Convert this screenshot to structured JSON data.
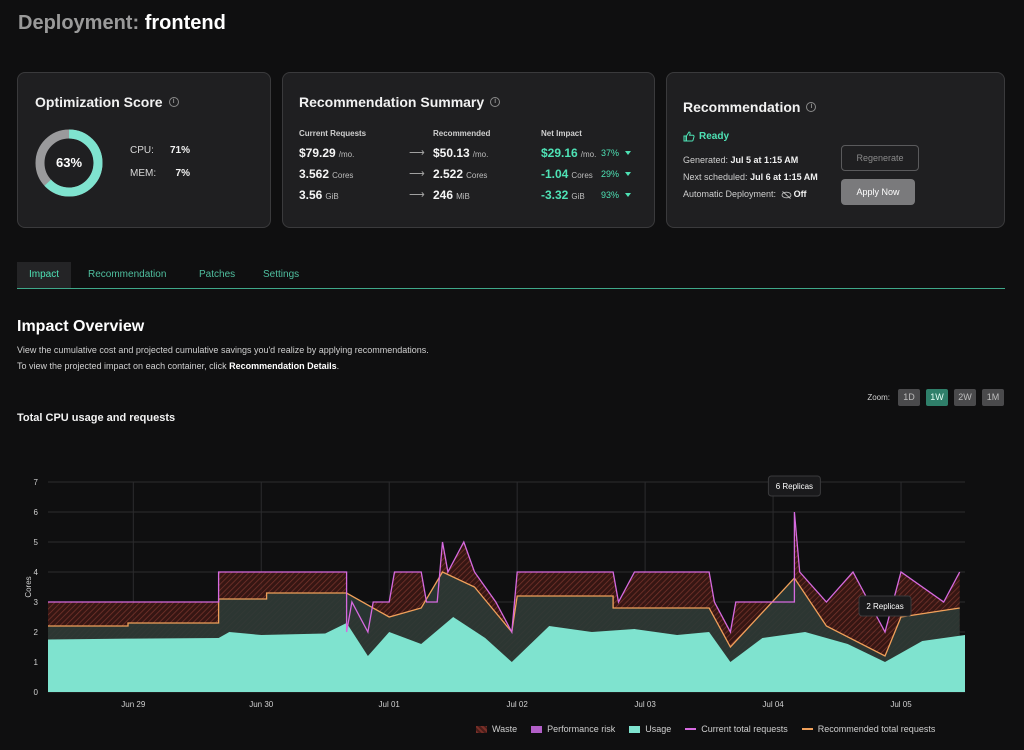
{
  "page": {
    "title_prefix": "Deployment:",
    "title_name": "frontend"
  },
  "score_card": {
    "title": "Optimization Score",
    "score_label": "63%",
    "score_value": 63,
    "rows": [
      {
        "label": "CPU:",
        "value": "71%"
      },
      {
        "label": "MEM:",
        "value": "7%"
      }
    ]
  },
  "summary_card": {
    "title": "Recommendation Summary",
    "headers": {
      "current": "Current Requests",
      "recommended": "Recommended",
      "impact": "Net Impact"
    },
    "rows": [
      {
        "cur": "$79.29",
        "cur_unit": "/mo.",
        "rec": "$50.13",
        "rec_unit": "/mo.",
        "net": "$29.16",
        "net_unit": "/mo.",
        "pct": "37%"
      },
      {
        "cur": "3.562",
        "cur_unit": "Cores",
        "rec": "2.522",
        "rec_unit": "Cores",
        "net": "-1.04",
        "net_unit": "Cores",
        "pct": "29%"
      },
      {
        "cur": "3.56",
        "cur_unit": "GiB",
        "rec": "246",
        "rec_unit": "MiB",
        "net": "-3.32",
        "net_unit": "GiB",
        "pct": "93%"
      }
    ]
  },
  "rec_card": {
    "title": "Recommendation",
    "status": "Ready",
    "generated_label": "Generated:",
    "generated_value": "Jul 5 at 1:15 AM",
    "next_label": "Next scheduled:",
    "next_value": "Jul 6 at 1:15 AM",
    "auto_label": "Automatic Deployment:",
    "auto_value": "Off",
    "regenerate_label": "Regenerate",
    "apply_label": "Apply Now"
  },
  "tabs": [
    {
      "label": "Impact",
      "active": true
    },
    {
      "label": "Recommendation",
      "active": false
    },
    {
      "label": "Patches",
      "active": false
    },
    {
      "label": "Settings",
      "active": false
    }
  ],
  "overview": {
    "title": "Impact Overview",
    "desc_line1": "View the cumulative cost and projected cumulative savings you'd realize by applying recommendations.",
    "desc_line2_prefix": "To view the projected impact on each container, click ",
    "desc_line2_bold": "Recommendation Details",
    "desc_line2_suffix": "."
  },
  "zoom": {
    "label": "Zoom:",
    "options": [
      "1D",
      "1W",
      "2W",
      "1M"
    ],
    "selected": "1W"
  },
  "colors": {
    "accent": "#4ee2b5",
    "usage": "#7fe3cf",
    "current_requests": "#d66ae0",
    "recommended_requests": "#f0a05a",
    "waste": "#7a2f28",
    "risk": "#b25fc8"
  },
  "chart_data": {
    "type": "area",
    "title": "Total CPU usage and requests",
    "ylabel": "Cores",
    "ylim": [
      0,
      7
    ],
    "yticks": [
      0,
      1,
      2,
      3,
      4,
      5,
      6,
      7
    ],
    "xlim": [
      "Jun 28 08:00",
      "Jul 05 12:00"
    ],
    "xticks": [
      "Jun 29",
      "Jun 30",
      "Jul 01",
      "Jul 02",
      "Jul 03",
      "Jul 04",
      "Jul 05"
    ],
    "grid": true,
    "legend_position": "bottom-right",
    "legend": [
      "Waste",
      "Performance risk",
      "Usage",
      "Current total requests",
      "Recommended total requests"
    ],
    "annotations": [
      {
        "text": "6 Replicas",
        "x": "Jul 04 04:00",
        "y": 6
      },
      {
        "text": "2 Replicas",
        "x": "Jul 04 21:00",
        "y": 2
      }
    ],
    "series": [
      {
        "name": "Current total requests",
        "points": [
          [
            "Jun 28 08:00",
            3.0
          ],
          [
            "Jun 29 16:00",
            3.0
          ],
          [
            "Jun 29 16:00",
            4.0
          ],
          [
            "Jun 30 16:00",
            4.0
          ],
          [
            "Jun 30 16:00",
            2.0
          ],
          [
            "Jun 30 17:00",
            3.0
          ],
          [
            "Jun 30 20:00",
            2.0
          ],
          [
            "Jun 30 21:00",
            3.0
          ],
          [
            "Jul 01 00:00",
            3.0
          ],
          [
            "Jul 01 01:00",
            4.0
          ],
          [
            "Jul 01 06:00",
            4.0
          ],
          [
            "Jul 01 07:00",
            3.0
          ],
          [
            "Jul 01 09:00",
            3.0
          ],
          [
            "Jul 01 10:00",
            5.0
          ],
          [
            "Jul 01 11:00",
            4.0
          ],
          [
            "Jul 01 14:00",
            5.0
          ],
          [
            "Jul 01 16:00",
            4.0
          ],
          [
            "Jul 01 20:00",
            3.0
          ],
          [
            "Jul 01 23:00",
            2.0
          ],
          [
            "Jul 02 00:00",
            4.0
          ],
          [
            "Jul 02 18:00",
            4.0
          ],
          [
            "Jul 02 19:00",
            3.0
          ],
          [
            "Jul 02 22:00",
            4.0
          ],
          [
            "Jul 03 12:00",
            4.0
          ],
          [
            "Jul 03 13:00",
            3.0
          ],
          [
            "Jul 03 16:00",
            2.0
          ],
          [
            "Jul 03 17:00",
            3.0
          ],
          [
            "Jul 04 04:00",
            3.0
          ],
          [
            "Jul 04 04:00",
            6.0
          ],
          [
            "Jul 04 05:00",
            4.0
          ],
          [
            "Jul 04 10:00",
            3.0
          ],
          [
            "Jul 04 15:00",
            4.0
          ],
          [
            "Jul 04 21:00",
            2.0
          ],
          [
            "Jul 05 00:00",
            4.0
          ],
          [
            "Jul 05 08:00",
            3.0
          ],
          [
            "Jul 05 11:00",
            4.0
          ]
        ]
      },
      {
        "name": "Recommended total requests",
        "points": [
          [
            "Jun 28 08:00",
            2.2
          ],
          [
            "Jun 28 23:00",
            2.2
          ],
          [
            "Jun 28 23:00",
            2.3
          ],
          [
            "Jun 29 16:00",
            2.3
          ],
          [
            "Jun 29 16:00",
            3.1
          ],
          [
            "Jun 30 01:00",
            3.1
          ],
          [
            "Jun 30 01:00",
            3.3
          ],
          [
            "Jun 30 16:00",
            3.3
          ],
          [
            "Jul 01 00:00",
            2.5
          ],
          [
            "Jul 01 06:00",
            2.8
          ],
          [
            "Jul 01 10:00",
            4.0
          ],
          [
            "Jul 01 16:00",
            3.5
          ],
          [
            "Jul 01 23:00",
            2.0
          ],
          [
            "Jul 02 00:00",
            3.2
          ],
          [
            "Jul 02 18:00",
            3.2
          ],
          [
            "Jul 02 18:00",
            2.8
          ],
          [
            "Jul 03 12:00",
            2.8
          ],
          [
            "Jul 03 16:00",
            1.5
          ],
          [
            "Jul 04 04:00",
            3.8
          ],
          [
            "Jul 04 10:00",
            2.2
          ],
          [
            "Jul 04 21:00",
            1.2
          ],
          [
            "Jul 05 00:00",
            2.5
          ],
          [
            "Jul 05 11:00",
            2.8
          ]
        ]
      },
      {
        "name": "Usage",
        "points": [
          [
            "Jun 28 08:00",
            1.75
          ],
          [
            "Jun 29 00:00",
            1.78
          ],
          [
            "Jun 29 16:00",
            1.8
          ],
          [
            "Jun 29 18:00",
            2.0
          ],
          [
            "Jun 30 00:00",
            1.9
          ],
          [
            "Jun 30 12:00",
            1.95
          ],
          [
            "Jun 30 16:00",
            2.3
          ],
          [
            "Jun 30 20:00",
            1.2
          ],
          [
            "Jul 01 00:00",
            2.0
          ],
          [
            "Jul 01 06:00",
            1.6
          ],
          [
            "Jul 01 12:00",
            2.5
          ],
          [
            "Jul 01 18:00",
            1.8
          ],
          [
            "Jul 01 23:00",
            1.0
          ],
          [
            "Jul 02 06:00",
            2.2
          ],
          [
            "Jul 02 14:00",
            2.0
          ],
          [
            "Jul 02 22:00",
            2.1
          ],
          [
            "Jul 03 06:00",
            1.9
          ],
          [
            "Jul 03 12:00",
            2.0
          ],
          [
            "Jul 03 16:00",
            1.0
          ],
          [
            "Jul 03 22:00",
            1.8
          ],
          [
            "Jul 04 06:00",
            2.0
          ],
          [
            "Jul 04 14:00",
            1.6
          ],
          [
            "Jul 04 21:00",
            1.0
          ],
          [
            "Jul 05 04:00",
            1.7
          ],
          [
            "Jul 05 12:00",
            1.9
          ]
        ]
      }
    ]
  }
}
